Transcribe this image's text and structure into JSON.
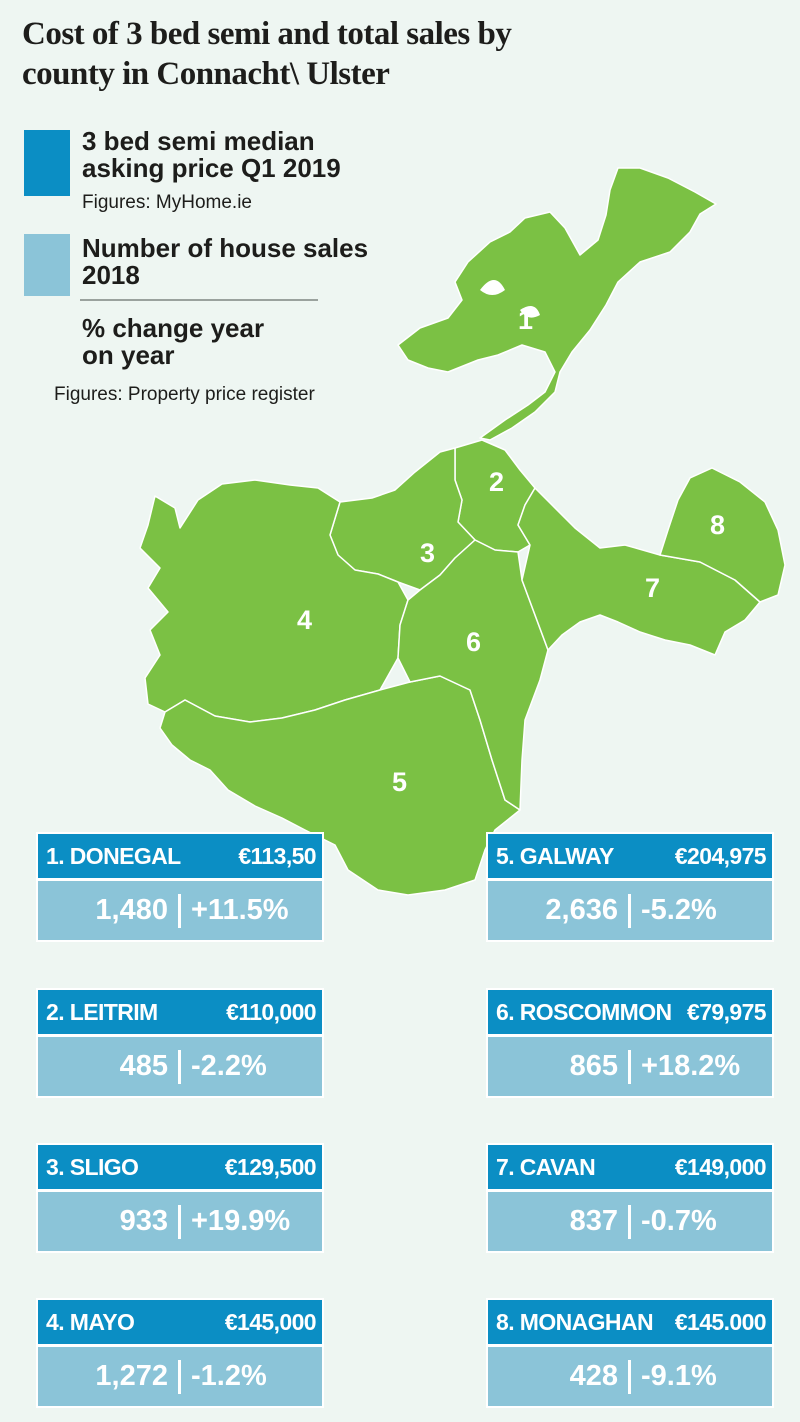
{
  "title": "Cost of 3 bed semi and total sales by county in Connacht\\ Ulster",
  "legend": {
    "price_label": "3 bed semi median asking price Q1 2019",
    "price_source": "Figures: MyHome.ie",
    "sales_label": "Number of  house sales 2018",
    "change_label": "% change year on year",
    "sales_source": "Figures: Property price register",
    "price_color": "#0b8ec4",
    "sales_color": "#8bc4d8"
  },
  "map": {
    "fill_color": "#7bc144",
    "labels": [
      "1",
      "2",
      "3",
      "4",
      "5",
      "6",
      "7",
      "8"
    ]
  },
  "counties": [
    {
      "name": "1. DONEGAL",
      "price": "€113,50",
      "sales": "1,480",
      "change": "+11.5%"
    },
    {
      "name": "2. LEITRIM",
      "price": "€110,000",
      "sales": "485",
      "change": "-2.2%"
    },
    {
      "name": "3. SLIGO",
      "price": "€129,500",
      "sales": "933",
      "change": "+19.9%"
    },
    {
      "name": "4. MAYO",
      "price": "€145,000",
      "sales": "1,272",
      "change": "-1.2%"
    },
    {
      "name": "5. GALWAY",
      "price": "€204,975",
      "sales": "2,636",
      "change": "-5.2%"
    },
    {
      "name": "6. ROSCOMMON",
      "price": "€79,975",
      "sales": "865",
      "change": "+18.2%"
    },
    {
      "name": "7. CAVAN",
      "price": "€149,000",
      "sales": "837",
      "change": "-0.7%"
    },
    {
      "name": "8. MONAGHAN",
      "price": "€145.000",
      "sales": "428",
      "change": "-9.1%"
    }
  ]
}
